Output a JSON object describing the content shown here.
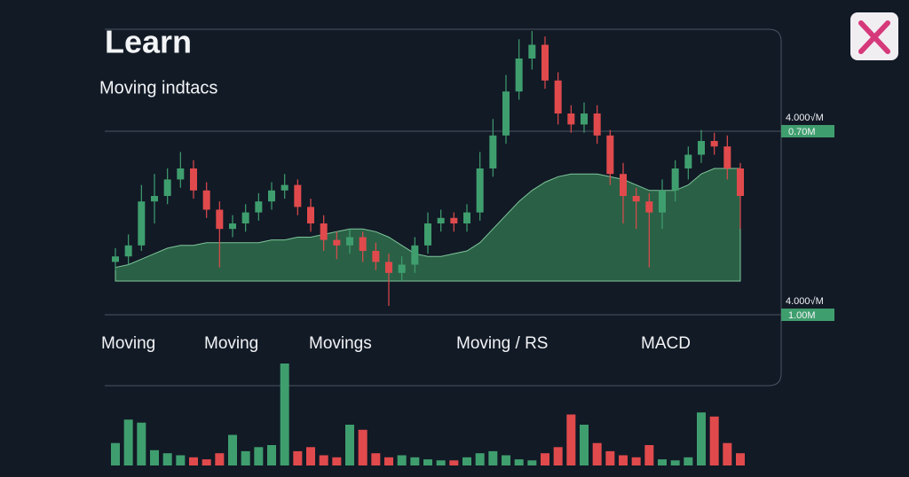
{
  "chart_data": {
    "type": "candlestick",
    "title": "Learn",
    "subtitle": "Moving indtacs",
    "open": [
      16,
      18,
      22,
      38,
      40,
      46,
      50,
      42,
      35,
      28,
      30,
      34,
      38,
      42,
      44,
      36,
      30,
      24,
      22,
      25,
      20,
      16,
      12,
      15,
      22,
      30,
      32,
      30,
      34,
      50,
      62,
      78,
      90,
      95,
      82,
      70,
      66,
      70,
      62,
      48,
      40,
      38,
      34,
      42,
      50,
      55,
      60,
      58,
      50
    ],
    "high": [
      21,
      26,
      44,
      48,
      50,
      56,
      53,
      45,
      38,
      33,
      37,
      41,
      45,
      48,
      46,
      39,
      33,
      27,
      28,
      27,
      23,
      19,
      18,
      25,
      34,
      35,
      34,
      37,
      56,
      68,
      84,
      97,
      100,
      98,
      85,
      73,
      74,
      73,
      64,
      52,
      43,
      41,
      46,
      53,
      58,
      64,
      63,
      62,
      52
    ],
    "low": [
      13,
      15,
      20,
      30,
      37,
      43,
      39,
      32,
      14,
      25,
      27,
      31,
      35,
      39,
      33,
      27,
      20,
      17,
      19,
      16,
      13,
      0,
      9,
      12,
      19,
      27,
      27,
      27,
      31,
      47,
      59,
      75,
      86,
      79,
      66,
      63,
      63,
      59,
      44,
      30,
      28,
      14,
      28,
      38,
      46,
      52,
      55,
      46,
      28
    ],
    "close": [
      18,
      22,
      38,
      40,
      46,
      50,
      42,
      35,
      28,
      30,
      34,
      38,
      42,
      44,
      36,
      30,
      24,
      22,
      25,
      20,
      16,
      12,
      15,
      22,
      30,
      32,
      30,
      34,
      50,
      62,
      78,
      90,
      95,
      82,
      70,
      66,
      70,
      62,
      48,
      40,
      38,
      34,
      42,
      50,
      55,
      60,
      58,
      50,
      40
    ],
    "ma": [
      14,
      15,
      17,
      19,
      21,
      22,
      22,
      23,
      23,
      23,
      23,
      23,
      24,
      24,
      25,
      25,
      26,
      27,
      28,
      28,
      27,
      25,
      22,
      19,
      18,
      18,
      19,
      20,
      23,
      28,
      33,
      38,
      42,
      45,
      47,
      48,
      48,
      48,
      47,
      46,
      44,
      42,
      42,
      42,
      44,
      48,
      50,
      50,
      50
    ],
    "volume": [
      22,
      45,
      42,
      15,
      12,
      10,
      8,
      6,
      12,
      30,
      14,
      18,
      20,
      100,
      14,
      18,
      10,
      8,
      40,
      35,
      12,
      8,
      10,
      8,
      6,
      5,
      5,
      8,
      12,
      14,
      10,
      6,
      5,
      12,
      18,
      50,
      40,
      22,
      14,
      10,
      8,
      20,
      6,
      5,
      8,
      52,
      48,
      22,
      12
    ],
    "ylim": [
      0,
      100
    ],
    "y2lim": [
      0,
      100
    ],
    "up_color": "#3f9e6e",
    "down_color": "#e04a4c",
    "area_color": "#2f6e4c",
    "axis_labels": [
      {
        "top": "4.000√M",
        "badge": "0.70M"
      },
      {
        "top": "4.000√M",
        "badge": "1.00M"
      }
    ],
    "indicators": [
      "Moving",
      "Moving",
      "Movings",
      "Moving / RS",
      "MACD"
    ]
  }
}
